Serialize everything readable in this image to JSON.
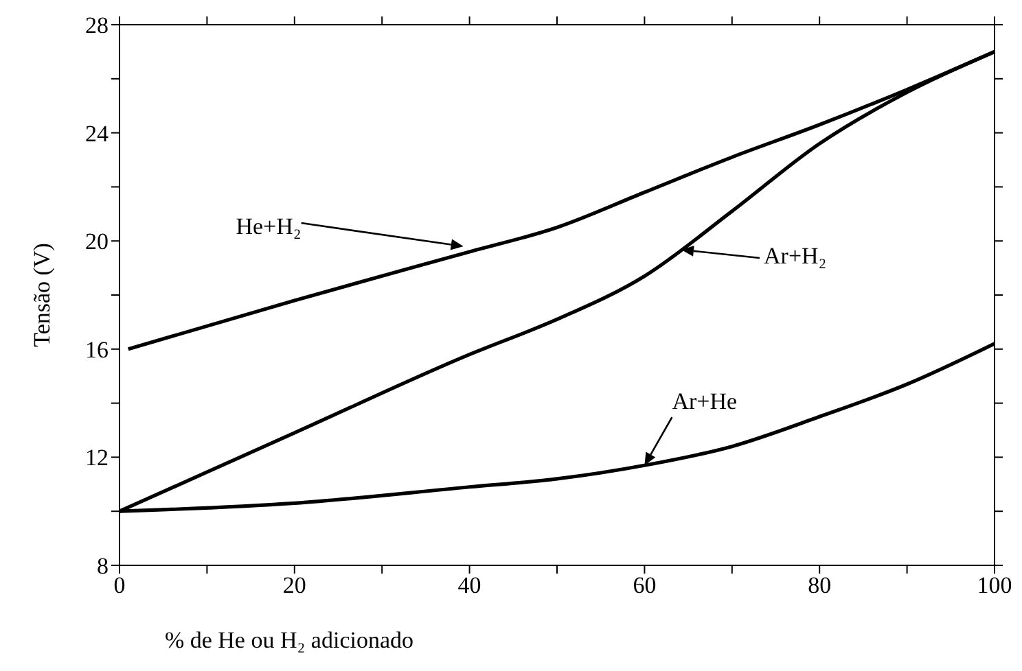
{
  "chart_data": {
    "type": "line",
    "xlabel": "% de He ou H₂ adicionado",
    "ylabel": "Tensão (V)",
    "xlim": [
      0,
      100
    ],
    "xticks": [
      0,
      {
        "value": 10,
        "label": null
      },
      20,
      {
        "value": 30,
        "label": null
      },
      40,
      {
        "value": 50,
        "label": null
      },
      60,
      {
        "value": 70,
        "label": null
      },
      80,
      {
        "value": 90,
        "label": null
      },
      100
    ],
    "ylim": [
      8,
      28
    ],
    "yticks": [
      8,
      {
        "value": 10,
        "label": null
      },
      12,
      {
        "value": 14,
        "label": null
      },
      16,
      {
        "value": 18,
        "label": null
      },
      20,
      {
        "value": 22,
        "label": null
      },
      24,
      {
        "value": 26,
        "label": null
      },
      28
    ],
    "legend": false,
    "marker": "none",
    "line_style": "solid",
    "series": [
      {
        "color": "#000000",
        "x": [
          1,
          20,
          40,
          50,
          60,
          70,
          80,
          90,
          100
        ],
        "values": [
          16,
          17.8,
          19.6,
          20.5,
          21.8,
          23.1,
          24.3,
          25.6,
          27
        ]
      },
      {
        "color": "#000000",
        "x": [
          0,
          20,
          40,
          50,
          60,
          70,
          80,
          90,
          100
        ],
        "values": [
          10,
          12.9,
          15.8,
          17.1,
          18.7,
          21.1,
          23.6,
          25.5,
          27
        ]
      },
      {
        "color": "#000000",
        "x": [
          0,
          20,
          40,
          50,
          60,
          70,
          80,
          90,
          100
        ],
        "values": [
          10,
          10.3,
          10.9,
          11.2,
          11.7,
          12.4,
          13.5,
          14.7,
          16.2
        ]
      }
    ],
    "annotations": [
      {
        "text": "He+H₂",
        "x": 39.3,
        "y": 19.8
      },
      "Ar+H₂",
      {
        "text": "Ar+He",
        "x": 60,
        "y": 11.7
      }
    ]
  }
}
